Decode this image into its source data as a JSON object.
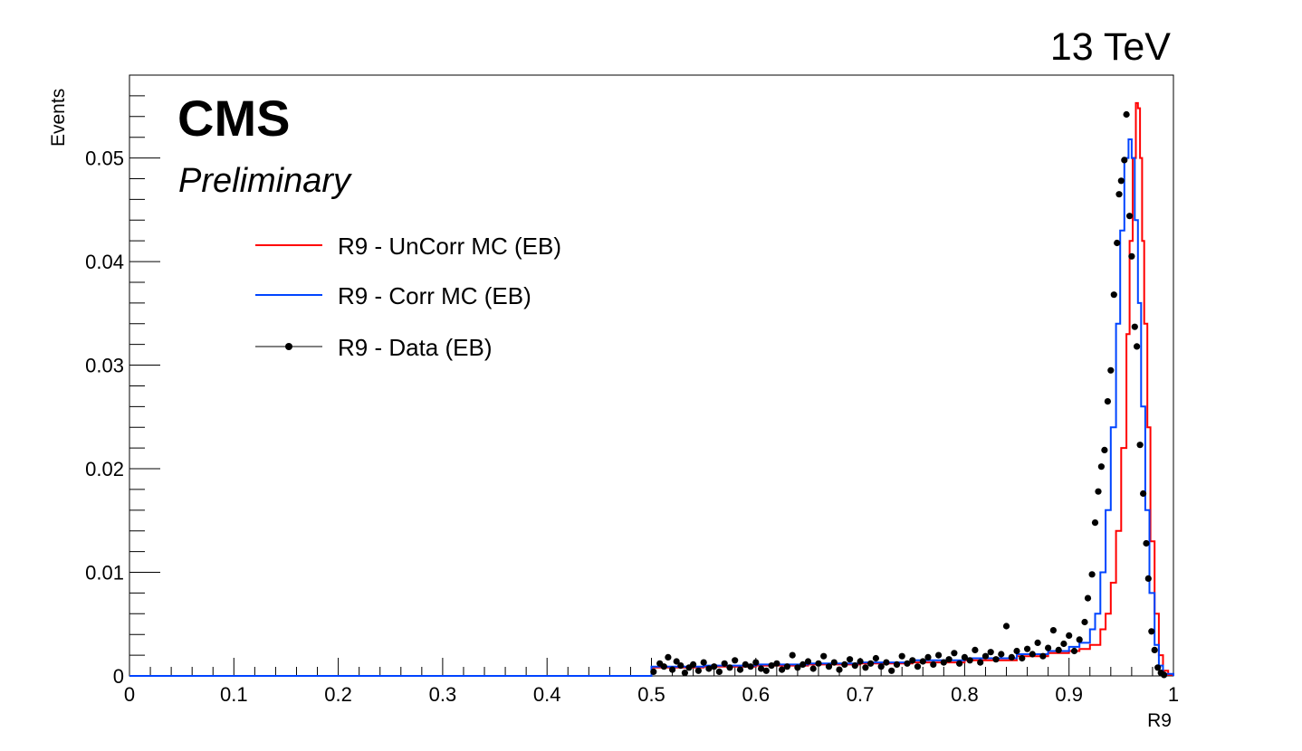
{
  "header": {
    "experiment": "CMS",
    "status": "Preliminary",
    "energy": "13 TeV"
  },
  "chart_data": {
    "type": "line",
    "xlabel": "R9",
    "ylabel": "Events",
    "xlim": [
      0,
      1
    ],
    "ylim": [
      0,
      0.058
    ],
    "x_ticks": [
      "0",
      "0.1",
      "0.2",
      "0.3",
      "0.4",
      "0.5",
      "0.6",
      "0.7",
      "0.8",
      "0.9",
      "1"
    ],
    "y_ticks": [
      "0",
      "0.01",
      "0.02",
      "0.03",
      "0.04",
      "0.05"
    ],
    "grid": false,
    "legend_placement": "top-left",
    "series": [
      {
        "name": "R9 - UnCorr MC (EB)",
        "style": "step",
        "color": "#ff0000",
        "points": [
          [
            0.0,
            0
          ],
          [
            0.5,
            0
          ],
          [
            0.5,
            0.0008
          ],
          [
            0.55,
            0.0009
          ],
          [
            0.6,
            0.001
          ],
          [
            0.65,
            0.0011
          ],
          [
            0.7,
            0.0012
          ],
          [
            0.75,
            0.0013
          ],
          [
            0.8,
            0.0015
          ],
          [
            0.85,
            0.0019
          ],
          [
            0.88,
            0.0022
          ],
          [
            0.9,
            0.0024
          ],
          [
            0.91,
            0.0026
          ],
          [
            0.92,
            0.003
          ],
          [
            0.93,
            0.0045
          ],
          [
            0.935,
            0.006
          ],
          [
            0.94,
            0.009
          ],
          [
            0.945,
            0.014
          ],
          [
            0.95,
            0.022
          ],
          [
            0.955,
            0.033
          ],
          [
            0.958,
            0.042
          ],
          [
            0.961,
            0.05
          ],
          [
            0.964,
            0.0553
          ],
          [
            0.966,
            0.0548
          ],
          [
            0.968,
            0.05
          ],
          [
            0.97,
            0.042
          ],
          [
            0.972,
            0.034
          ],
          [
            0.975,
            0.024
          ],
          [
            0.978,
            0.013
          ],
          [
            0.982,
            0.006
          ],
          [
            0.986,
            0.002
          ],
          [
            0.99,
            0.0005
          ],
          [
            0.995,
            0.0001
          ],
          [
            1.0,
            0
          ]
        ]
      },
      {
        "name": "R9 - Corr MC (EB)",
        "style": "step",
        "color": "#0044ff",
        "points": [
          [
            0.0,
            0
          ],
          [
            0.5,
            0
          ],
          [
            0.5,
            0.0009
          ],
          [
            0.55,
            0.001
          ],
          [
            0.6,
            0.0011
          ],
          [
            0.65,
            0.0012
          ],
          [
            0.7,
            0.0013
          ],
          [
            0.75,
            0.0015
          ],
          [
            0.8,
            0.0017
          ],
          [
            0.85,
            0.0021
          ],
          [
            0.88,
            0.0024
          ],
          [
            0.9,
            0.0028
          ],
          [
            0.91,
            0.0032
          ],
          [
            0.92,
            0.0045
          ],
          [
            0.925,
            0.006
          ],
          [
            0.93,
            0.01
          ],
          [
            0.935,
            0.016
          ],
          [
            0.94,
            0.024
          ],
          [
            0.945,
            0.034
          ],
          [
            0.949,
            0.043
          ],
          [
            0.953,
            0.05
          ],
          [
            0.957,
            0.0518
          ],
          [
            0.96,
            0.05
          ],
          [
            0.963,
            0.044
          ],
          [
            0.966,
            0.036
          ],
          [
            0.969,
            0.026
          ],
          [
            0.973,
            0.016
          ],
          [
            0.977,
            0.008
          ],
          [
            0.982,
            0.003
          ],
          [
            0.986,
            0.001
          ],
          [
            0.99,
            0.0002
          ],
          [
            1.0,
            0
          ]
        ]
      },
      {
        "name": "R9 - Data (EB)",
        "style": "markers",
        "color": "#000000",
        "points": [
          [
            0.502,
            0.0004
          ],
          [
            0.508,
            0.0012
          ],
          [
            0.512,
            0.0009
          ],
          [
            0.516,
            0.0018
          ],
          [
            0.52,
            0.0006
          ],
          [
            0.524,
            0.0014
          ],
          [
            0.528,
            0.001
          ],
          [
            0.532,
            0.0003
          ],
          [
            0.536,
            0.0008
          ],
          [
            0.54,
            0.0011
          ],
          [
            0.545,
            0.0005
          ],
          [
            0.55,
            0.0013
          ],
          [
            0.555,
            0.0007
          ],
          [
            0.56,
            0.0009
          ],
          [
            0.565,
            0.0004
          ],
          [
            0.57,
            0.0012
          ],
          [
            0.575,
            0.0008
          ],
          [
            0.58,
            0.0015
          ],
          [
            0.585,
            0.0006
          ],
          [
            0.59,
            0.0011
          ],
          [
            0.595,
            0.0009
          ],
          [
            0.6,
            0.0013
          ],
          [
            0.605,
            0.0007
          ],
          [
            0.61,
            0.0005
          ],
          [
            0.615,
            0.001
          ],
          [
            0.62,
            0.0012
          ],
          [
            0.625,
            0.0006
          ],
          [
            0.63,
            0.0009
          ],
          [
            0.635,
            0.002
          ],
          [
            0.64,
            0.0008
          ],
          [
            0.645,
            0.0011
          ],
          [
            0.65,
            0.0014
          ],
          [
            0.655,
            0.0007
          ],
          [
            0.66,
            0.0012
          ],
          [
            0.665,
            0.0019
          ],
          [
            0.67,
            0.0009
          ],
          [
            0.675,
            0.0013
          ],
          [
            0.68,
            0.0006
          ],
          [
            0.685,
            0.0011
          ],
          [
            0.69,
            0.0016
          ],
          [
            0.695,
            0.001
          ],
          [
            0.7,
            0.0014
          ],
          [
            0.705,
            0.0008
          ],
          [
            0.71,
            0.0012
          ],
          [
            0.715,
            0.0017
          ],
          [
            0.72,
            0.0009
          ],
          [
            0.725,
            0.0013
          ],
          [
            0.73,
            0.0005
          ],
          [
            0.735,
            0.0011
          ],
          [
            0.74,
            0.0019
          ],
          [
            0.745,
            0.0012
          ],
          [
            0.75,
            0.0015
          ],
          [
            0.755,
            0.0009
          ],
          [
            0.76,
            0.0014
          ],
          [
            0.765,
            0.0018
          ],
          [
            0.77,
            0.0011
          ],
          [
            0.775,
            0.002
          ],
          [
            0.78,
            0.0013
          ],
          [
            0.785,
            0.0016
          ],
          [
            0.79,
            0.0022
          ],
          [
            0.795,
            0.0012
          ],
          [
            0.8,
            0.0018
          ],
          [
            0.805,
            0.0015
          ],
          [
            0.81,
            0.0025
          ],
          [
            0.815,
            0.0013
          ],
          [
            0.82,
            0.0019
          ],
          [
            0.825,
            0.0023
          ],
          [
            0.83,
            0.0016
          ],
          [
            0.835,
            0.0021
          ],
          [
            0.84,
            0.0048
          ],
          [
            0.845,
            0.0018
          ],
          [
            0.85,
            0.0024
          ],
          [
            0.855,
            0.0017
          ],
          [
            0.86,
            0.0026
          ],
          [
            0.865,
            0.0021
          ],
          [
            0.87,
            0.0032
          ],
          [
            0.875,
            0.0019
          ],
          [
            0.88,
            0.0027
          ],
          [
            0.885,
            0.0044
          ],
          [
            0.89,
            0.0025
          ],
          [
            0.895,
            0.0031
          ],
          [
            0.9,
            0.0039
          ],
          [
            0.905,
            0.0024
          ],
          [
            0.91,
            0.0035
          ],
          [
            0.915,
            0.0052
          ],
          [
            0.918,
            0.0075
          ],
          [
            0.922,
            0.0098
          ],
          [
            0.925,
            0.0148
          ],
          [
            0.928,
            0.0178
          ],
          [
            0.931,
            0.0202
          ],
          [
            0.934,
            0.0218
          ],
          [
            0.937,
            0.0265
          ],
          [
            0.94,
            0.0295
          ],
          [
            0.943,
            0.0368
          ],
          [
            0.946,
            0.0418
          ],
          [
            0.948,
            0.0465
          ],
          [
            0.95,
            0.0478
          ],
          [
            0.953,
            0.0498
          ],
          [
            0.955,
            0.0542
          ],
          [
            0.958,
            0.0444
          ],
          [
            0.96,
            0.0405
          ],
          [
            0.963,
            0.0337
          ],
          [
            0.965,
            0.0318
          ],
          [
            0.968,
            0.0223
          ],
          [
            0.971,
            0.0176
          ],
          [
            0.974,
            0.0128
          ],
          [
            0.976,
            0.0094
          ],
          [
            0.979,
            0.0043
          ],
          [
            0.982,
            0.0025
          ],
          [
            0.985,
            0.0008
          ],
          [
            0.988,
            0.0003
          ],
          [
            0.991,
            0.0001
          ]
        ]
      }
    ]
  }
}
